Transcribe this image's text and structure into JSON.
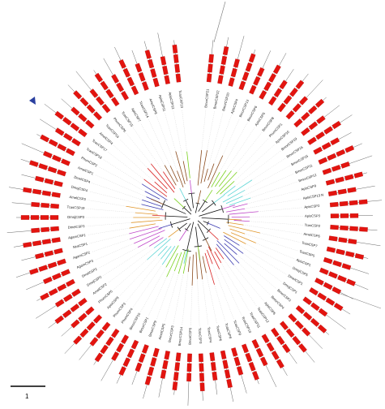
{
  "figure": {
    "scale_bar_label": "1",
    "colors": {
      "motif": "#e3140f",
      "tree": "#111111",
      "guide": "#c8c8c8",
      "clades": [
        "#8a4a1c",
        "#7ad11e",
        "#5ed6d6",
        "#c049c9",
        "#e0962a",
        "#3b3bb0",
        "#d92626"
      ],
      "arrow": "#2a3f9f"
    },
    "tips": [
      "BmorCSP21",
      "BmorCSP22",
      "BmorCSP20",
      "ApisCSP4",
      "BmorCSP13",
      "BmorCSP6",
      "ApisCSP5",
      "BmorCSP8",
      "PhumCSP1",
      "ApisCSP10",
      "BmorCSP19",
      "BmorCSP16",
      "BmorCSP15",
      "BmorCSP11",
      "BmorCSP12",
      "ApisCSP9",
      "AplsCSP13 N",
      "ApisCSP2",
      "ApisCSP3",
      "TcasCSP2",
      "AmelCSP6",
      "TcasCSP7",
      "TcasCSP5",
      "ApisCSP1",
      "DmojCSP5",
      "DmelCSP1",
      "DmojCSP1",
      "BmorCSP2",
      "BmorCSP4",
      "ApisCSP6",
      "TcasCSP12",
      "TcasCSP11",
      "TcasCSP10",
      "TcasCSP9",
      "TcasCSP8",
      "TcasCSP6",
      "TcasCSP4",
      "TcasCSP3",
      "BmorCSP5",
      "BmorCSP14",
      "BmorCSP3",
      "AmelCSP5",
      "BmorCSP9",
      "BmorCSP1",
      "BmorCSP10",
      "PhumCSP4",
      "PhumCSP3",
      "ApisCSP8",
      "PhumCSP5",
      "AmelCSP2",
      "DmojCSP2",
      "DmelCSP2",
      "AgamCSP3",
      "AgamCSP2",
      "NcaCSP1",
      "AgamCSP1",
      "DmelCSP3",
      "DmojCSP3",
      "TcasCSP19",
      "AmelCSP3",
      "DmojCSP4",
      "DmelCSP4",
      "AmelCSP1",
      "PhumCSP2",
      "TcasCSP18",
      "TcasCSP17",
      "AmelCSP4",
      "TcasCSP16",
      "PhumCSP6",
      "TcasCSP15",
      "ApisCSP7",
      "TcasCSP14",
      "AmelCSP8",
      "ApisCSP11",
      "ApisCSP12",
      "TcasCSP13"
    ]
  }
}
